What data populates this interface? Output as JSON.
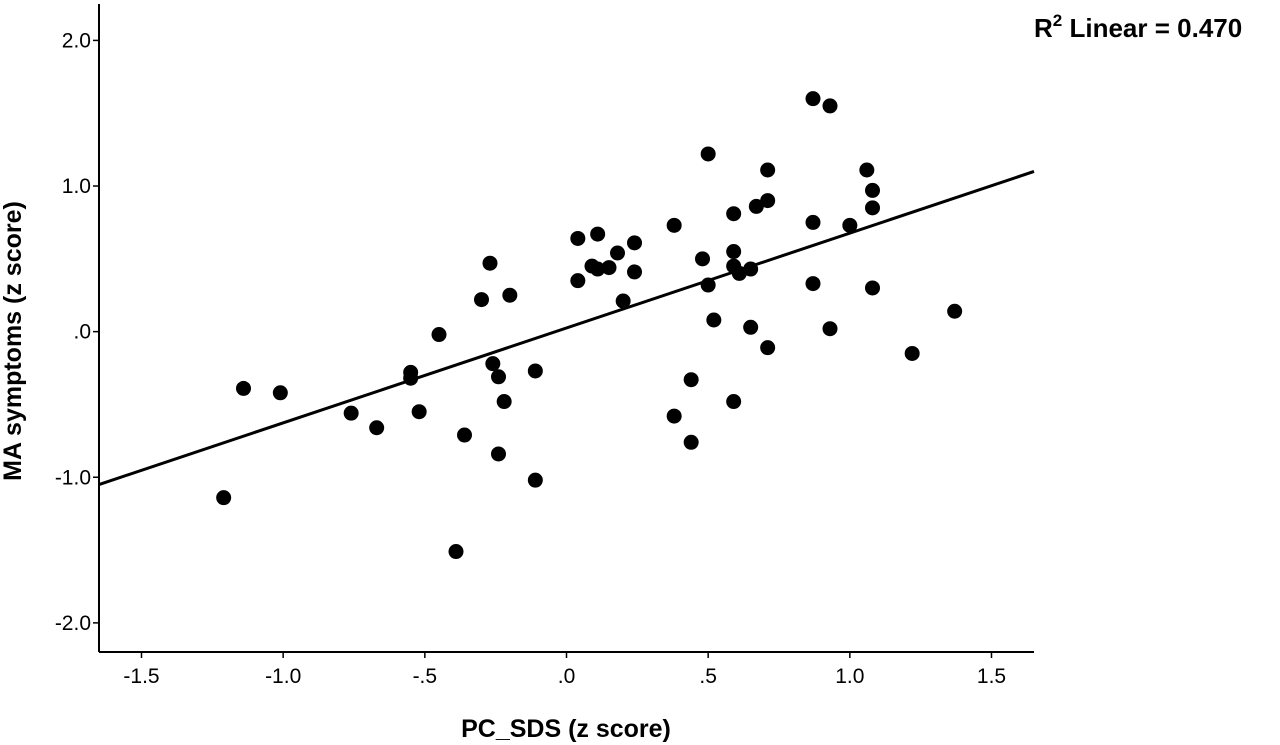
{
  "chart_data": {
    "type": "scatter",
    "title": "",
    "xlabel": "PC_SDS (z score)",
    "ylabel": "MA symptoms (z score)",
    "xlim": [
      -1.65,
      1.65
    ],
    "ylim": [
      -2.2,
      2.25
    ],
    "x_ticks": [
      -1.5,
      -1.0,
      -0.5,
      0.0,
      0.5,
      1.0,
      1.5
    ],
    "x_tick_labels": [
      "-1.5",
      "-1.0",
      "-.5",
      ".0",
      ".5",
      "1.0",
      "1.5"
    ],
    "y_ticks": [
      -2.0,
      -1.0,
      0.0,
      1.0,
      2.0
    ],
    "y_tick_labels": [
      "-2.0",
      "-1.0",
      ".0",
      "1.0",
      "2.0"
    ],
    "grid": false,
    "annotation": {
      "prefix": "R",
      "superscript": "2",
      "text": " Linear = 0.470"
    },
    "fit_line": {
      "x": [
        -1.65,
        1.65
      ],
      "y": [
        -1.05,
        1.1
      ]
    },
    "points": [
      {
        "x": -1.21,
        "y": -1.14
      },
      {
        "x": -1.14,
        "y": -0.39
      },
      {
        "x": -1.01,
        "y": -0.42
      },
      {
        "x": -0.76,
        "y": -0.56
      },
      {
        "x": -0.67,
        "y": -0.66
      },
      {
        "x": -0.55,
        "y": -0.28
      },
      {
        "x": -0.55,
        "y": -0.32
      },
      {
        "x": -0.52,
        "y": -0.55
      },
      {
        "x": -0.45,
        "y": -0.02
      },
      {
        "x": -0.39,
        "y": -1.51
      },
      {
        "x": -0.36,
        "y": -0.71
      },
      {
        "x": -0.3,
        "y": 0.22
      },
      {
        "x": -0.27,
        "y": 0.47
      },
      {
        "x": -0.26,
        "y": -0.22
      },
      {
        "x": -0.24,
        "y": -0.31
      },
      {
        "x": -0.24,
        "y": -0.84
      },
      {
        "x": -0.22,
        "y": -0.48
      },
      {
        "x": -0.2,
        "y": 0.25
      },
      {
        "x": -0.11,
        "y": -1.02
      },
      {
        "x": -0.11,
        "y": -0.27
      },
      {
        "x": 0.04,
        "y": 0.64
      },
      {
        "x": 0.04,
        "y": 0.35
      },
      {
        "x": 0.09,
        "y": 0.45
      },
      {
        "x": 0.11,
        "y": 0.67
      },
      {
        "x": 0.11,
        "y": 0.43
      },
      {
        "x": 0.15,
        "y": 0.44
      },
      {
        "x": 0.18,
        "y": 0.54
      },
      {
        "x": 0.2,
        "y": 0.21
      },
      {
        "x": 0.24,
        "y": 0.61
      },
      {
        "x": 0.24,
        "y": 0.41
      },
      {
        "x": 0.38,
        "y": 0.73
      },
      {
        "x": 0.38,
        "y": -0.58
      },
      {
        "x": 0.44,
        "y": -0.33
      },
      {
        "x": 0.44,
        "y": -0.76
      },
      {
        "x": 0.48,
        "y": 0.5
      },
      {
        "x": 0.5,
        "y": 0.32
      },
      {
        "x": 0.5,
        "y": 1.22
      },
      {
        "x": 0.52,
        "y": 0.08
      },
      {
        "x": 0.59,
        "y": 0.81
      },
      {
        "x": 0.59,
        "y": 0.55
      },
      {
        "x": 0.59,
        "y": 0.45
      },
      {
        "x": 0.59,
        "y": -0.48
      },
      {
        "x": 0.61,
        "y": 0.4
      },
      {
        "x": 0.65,
        "y": 0.43
      },
      {
        "x": 0.65,
        "y": 0.03
      },
      {
        "x": 0.67,
        "y": 0.86
      },
      {
        "x": 0.71,
        "y": 1.11
      },
      {
        "x": 0.71,
        "y": 0.9
      },
      {
        "x": 0.71,
        "y": -0.11
      },
      {
        "x": 0.87,
        "y": 1.6
      },
      {
        "x": 0.87,
        "y": 0.75
      },
      {
        "x": 0.87,
        "y": 0.33
      },
      {
        "x": 0.93,
        "y": 1.55
      },
      {
        "x": 0.93,
        "y": 0.02
      },
      {
        "x": 1.0,
        "y": 0.73
      },
      {
        "x": 1.06,
        "y": 1.11
      },
      {
        "x": 1.08,
        "y": 0.97
      },
      {
        "x": 1.08,
        "y": 0.85
      },
      {
        "x": 1.08,
        "y": 0.3
      },
      {
        "x": 1.22,
        "y": -0.15
      },
      {
        "x": 1.37,
        "y": 0.14
      }
    ]
  }
}
